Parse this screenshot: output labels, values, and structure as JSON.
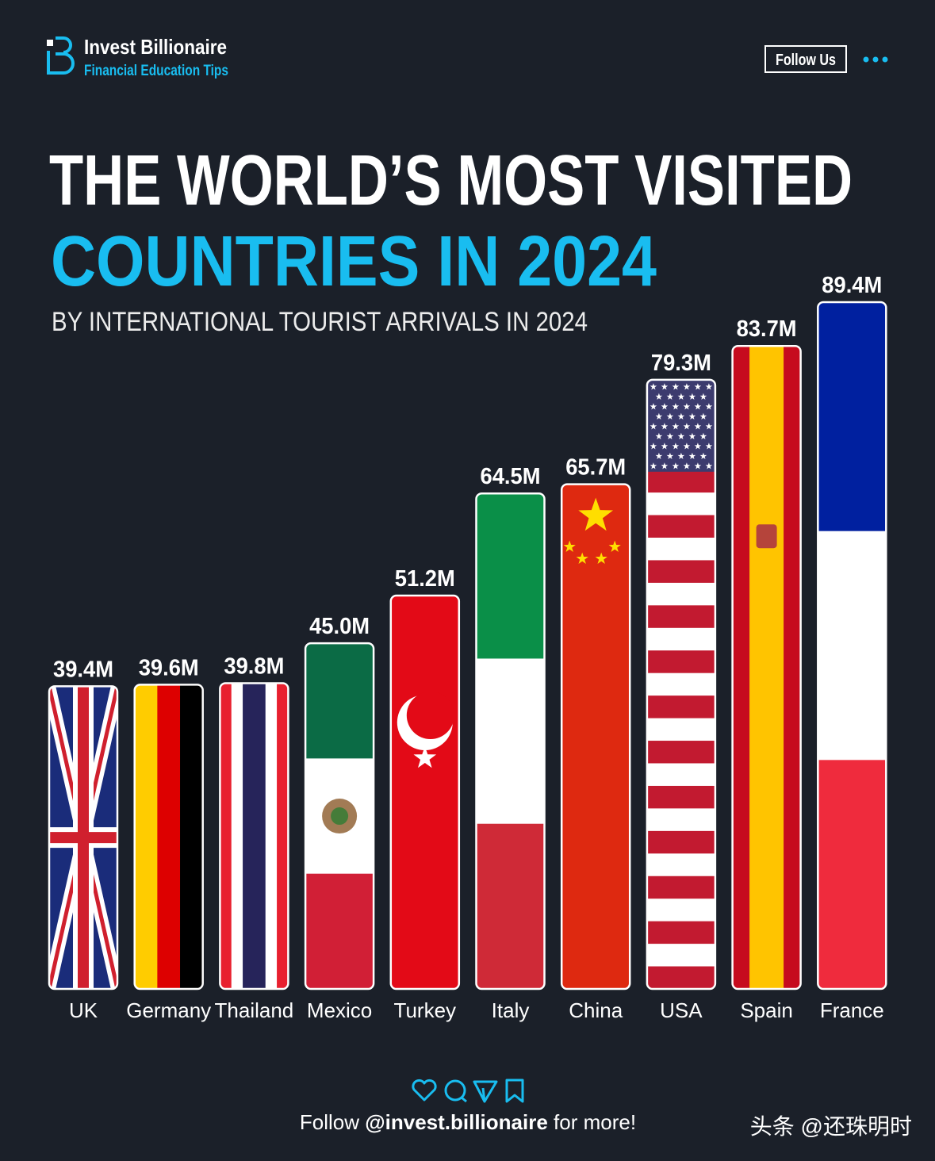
{
  "header": {
    "brand": "Invest Billionaire",
    "tagline": "Financial Education Tips",
    "button": "Follow Us"
  },
  "chart_data": {
    "type": "bar",
    "title_lines": [
      "THE WORLD’S MOST VISITED",
      "COUNTRIES IN 2024"
    ],
    "subtitle": "BY INTERNATIONAL TOURIST ARRIVALS IN 2024",
    "categories": [
      "UK",
      "Germany",
      "Thailand",
      "Mexico",
      "Turkey",
      "Italy",
      "China",
      "USA",
      "Spain",
      "France"
    ],
    "values": [
      39.4,
      39.6,
      39.8,
      45.0,
      51.2,
      64.5,
      65.7,
      79.3,
      83.7,
      89.4
    ],
    "value_labels": [
      "39.4M",
      "39.6M",
      "39.8M",
      "45.0M",
      "51.2M",
      "64.5M",
      "65.7M",
      "79.3M",
      "83.7M",
      "89.4M"
    ]
  },
  "footer": {
    "follow": "Follow",
    "handle": "@invest.billionaire",
    "more": "for more!",
    "watermark": "头条 @还珠明时"
  }
}
